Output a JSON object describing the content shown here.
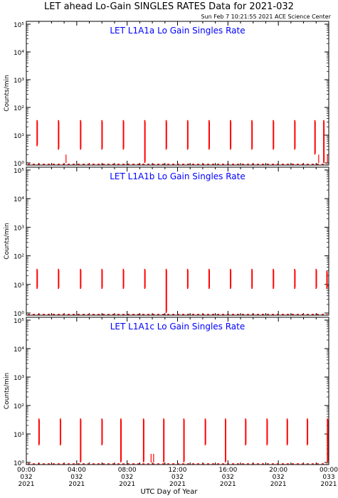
{
  "page": {
    "title": "LET ahead Lo-Gain SINGLES RATES Data for 2021-032",
    "timestamp": "Sun Feb  7 10:21:55 2021 ACE Science Center",
    "xlabel": "UTC Day of Year"
  },
  "colors": {
    "data": "#ff0000",
    "panel_title": "#0000ff",
    "axes": "#000000"
  },
  "chart_data": [
    {
      "type": "line",
      "title": "LET L1A1a Lo Gain Singles Rate",
      "ylabel": "Counts/min",
      "yscale": "log",
      "ylim": [
        1,
        100000
      ],
      "yticks": [
        1,
        10,
        100,
        1000,
        10000,
        100000
      ],
      "ytick_labels": [
        "10⁰",
        "10¹",
        "10²",
        "10³",
        "10⁴",
        "10⁵"
      ],
      "xlim": [
        0,
        24
      ],
      "xunit": "hours UTC",
      "spikes": [
        {
          "x": 0.85,
          "low": 4,
          "high": 35
        },
        {
          "x": 2.55,
          "low": 3,
          "high": 35
        },
        {
          "x": 4.3,
          "low": 3,
          "high": 35
        },
        {
          "x": 6.0,
          "low": 3,
          "high": 35
        },
        {
          "x": 7.7,
          "low": 3,
          "high": 35
        },
        {
          "x": 9.4,
          "low": 1,
          "high": 35
        },
        {
          "x": 11.1,
          "low": 3,
          "high": 35
        },
        {
          "x": 12.8,
          "low": 3,
          "high": 35
        },
        {
          "x": 14.5,
          "low": 3,
          "high": 35
        },
        {
          "x": 16.2,
          "low": 3,
          "high": 35
        },
        {
          "x": 17.9,
          "low": 3,
          "high": 35
        },
        {
          "x": 19.6,
          "low": 3,
          "high": 35
        },
        {
          "x": 21.3,
          "low": 3,
          "high": 35
        },
        {
          "x": 22.9,
          "low": 2,
          "high": 35
        },
        {
          "x": 23.6,
          "low": 1,
          "high": 35
        }
      ],
      "small_spikes": [
        {
          "x": 3.15,
          "low": 1,
          "high": 2
        },
        {
          "x": 23.2,
          "low": 1,
          "high": 2
        },
        {
          "x": 23.9,
          "low": 1,
          "high": 2
        }
      ],
      "baseline": 0.9
    },
    {
      "type": "line",
      "title": "LET L1A1b Lo Gain Singles Rate",
      "ylabel": "Counts/min",
      "yscale": "log",
      "ylim": [
        1,
        100000
      ],
      "yticks": [
        1,
        10,
        100,
        1000,
        10000,
        100000
      ],
      "ytick_labels": [
        "10⁰",
        "10¹",
        "10²",
        "10³",
        "10⁴",
        "10⁵"
      ],
      "xlim": [
        0,
        24
      ],
      "xunit": "hours UTC",
      "spikes": [
        {
          "x": 0.85,
          "low": 7,
          "high": 35
        },
        {
          "x": 2.55,
          "low": 7,
          "high": 35
        },
        {
          "x": 4.3,
          "low": 7,
          "high": 35
        },
        {
          "x": 6.0,
          "low": 7,
          "high": 35
        },
        {
          "x": 7.7,
          "low": 7,
          "high": 35
        },
        {
          "x": 9.4,
          "low": 7,
          "high": 35
        },
        {
          "x": 11.1,
          "low": 1,
          "high": 35
        },
        {
          "x": 12.8,
          "low": 7,
          "high": 35
        },
        {
          "x": 14.5,
          "low": 7,
          "high": 35
        },
        {
          "x": 16.2,
          "low": 7,
          "high": 35
        },
        {
          "x": 17.9,
          "low": 7,
          "high": 35
        },
        {
          "x": 19.6,
          "low": 7,
          "high": 35
        },
        {
          "x": 21.3,
          "low": 7,
          "high": 35
        },
        {
          "x": 23.0,
          "low": 7,
          "high": 35
        },
        {
          "x": 23.85,
          "low": 7,
          "high": 30
        }
      ],
      "small_spikes": [],
      "baseline": 0.9
    },
    {
      "type": "line",
      "title": "LET L1A1c Lo Gain Singles Rate",
      "ylabel": "Counts/min",
      "yscale": "log",
      "ylim": [
        1,
        100000
      ],
      "yticks": [
        1,
        10,
        100,
        1000,
        10000,
        100000
      ],
      "ytick_labels": [
        "10⁰",
        "10¹",
        "10²",
        "10³",
        "10⁴",
        "10⁵"
      ],
      "xlim": [
        0,
        24
      ],
      "xunit": "hours UTC",
      "spikes": [
        {
          "x": 1.0,
          "low": 4,
          "high": 35
        },
        {
          "x": 2.7,
          "low": 4,
          "high": 35
        },
        {
          "x": 4.3,
          "low": 1,
          "high": 35
        },
        {
          "x": 6.0,
          "low": 4,
          "high": 35
        },
        {
          "x": 7.5,
          "low": 1,
          "high": 35
        },
        {
          "x": 9.3,
          "low": 1,
          "high": 35
        },
        {
          "x": 10.9,
          "low": 1,
          "high": 35
        },
        {
          "x": 12.5,
          "low": 1,
          "high": 35
        },
        {
          "x": 14.2,
          "low": 4,
          "high": 35
        },
        {
          "x": 15.8,
          "low": 1,
          "high": 35
        },
        {
          "x": 17.4,
          "low": 4,
          "high": 35
        },
        {
          "x": 19.1,
          "low": 4,
          "high": 35
        },
        {
          "x": 20.7,
          "low": 4,
          "high": 35
        },
        {
          "x": 22.3,
          "low": 4,
          "high": 35
        },
        {
          "x": 23.9,
          "low": 1,
          "high": 35
        }
      ],
      "small_spikes": [
        {
          "x": 9.9,
          "low": 1,
          "high": 2
        },
        {
          "x": 10.1,
          "low": 1,
          "high": 2
        }
      ],
      "baseline": 0.9
    }
  ],
  "x_axis": {
    "ticks": [
      0,
      4,
      8,
      12,
      16,
      20,
      24
    ],
    "tick_times": [
      "00:00",
      "04:00",
      "08:00",
      "12:00",
      "16:00",
      "20:00",
      "00:00"
    ],
    "tick_days": [
      "032",
      "032",
      "032",
      "032",
      "032",
      "032",
      "033"
    ],
    "tick_years": [
      "2021",
      "2021",
      "2021",
      "2021",
      "2021",
      "2021",
      "2021"
    ]
  }
}
